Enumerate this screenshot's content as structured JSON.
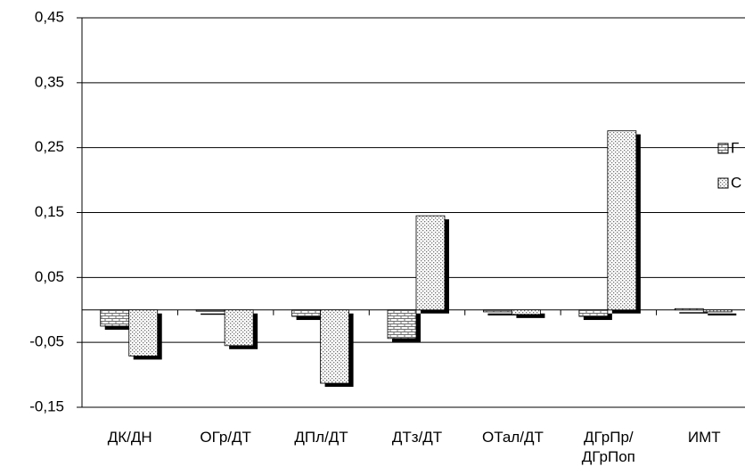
{
  "chart_data": {
    "type": "bar",
    "categories": [
      "ДК/ДН",
      "ОГр/ДТ",
      "ДПл/ДТ",
      "ДТз/ДТ",
      "ОТал/ДТ",
      "ДГрПр/\nДГрПоп",
      "ИМТ"
    ],
    "series": [
      {
        "name": "Г",
        "color": "#707070",
        "values": [
          -0.025,
          -0.002,
          -0.01,
          -0.044,
          -0.003,
          -0.01,
          0.002
        ]
      },
      {
        "name": "С",
        "color": "#707070",
        "values": [
          -0.071,
          -0.055,
          -0.113,
          0.145,
          -0.007,
          0.276,
          -0.003
        ]
      }
    ],
    "ylim": [
      -0.15,
      0.45
    ],
    "yticks": [
      {
        "value": -0.15,
        "label": "-0,15"
      },
      {
        "value": -0.05,
        "label": "-0,05"
      },
      {
        "value": 0.05,
        "label": "0,05"
      },
      {
        "value": 0.15,
        "label": "0,15"
      },
      {
        "value": 0.25,
        "label": "0,25"
      },
      {
        "value": 0.35,
        "label": "0,35"
      },
      {
        "value": 0.45,
        "label": "0,45"
      }
    ],
    "grid": true
  }
}
